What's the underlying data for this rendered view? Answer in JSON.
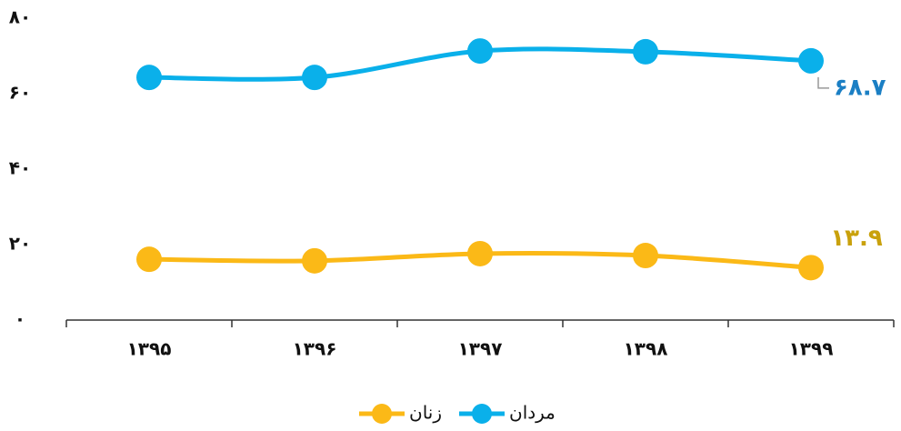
{
  "chart_data": {
    "type": "line",
    "categories": [
      "۱۳۹۵",
      "۱۳۹۶",
      "۱۳۹۷",
      "۱۳۹۸",
      "۱۳۹۹"
    ],
    "series": [
      {
        "name": "مردان",
        "color": "#0ab0ea",
        "label_color": "#1b7fc4",
        "values": [
          64.3,
          64.3,
          71.3,
          71.1,
          68.7
        ],
        "value_labels": [
          null,
          null,
          null,
          null,
          "۶۸.۷"
        ]
      },
      {
        "name": "زنان",
        "color": "#fbb917",
        "label_color": "#c9a10c",
        "values": [
          16.1,
          15.7,
          17.6,
          17.1,
          13.9
        ],
        "value_labels": [
          null,
          null,
          null,
          null,
          "۱۳.۹"
        ]
      }
    ],
    "ylim": [
      0,
      80
    ],
    "yticks": [
      {
        "value": 0,
        "label": "۰"
      },
      {
        "value": 20,
        "label": "۲۰"
      },
      {
        "value": 40,
        "label": "۴۰"
      },
      {
        "value": 60,
        "label": "۶۰"
      },
      {
        "value": 80,
        "label": "۸۰"
      }
    ],
    "grid": false
  }
}
